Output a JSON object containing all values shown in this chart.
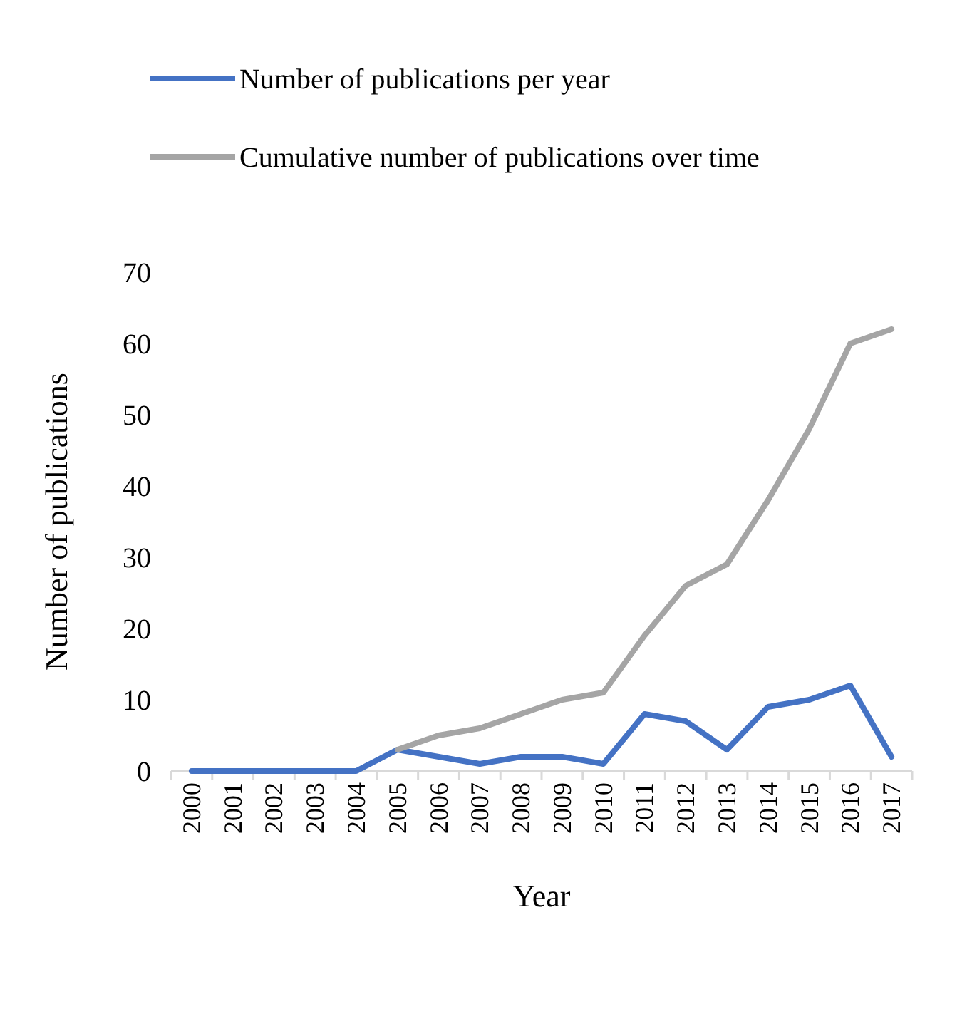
{
  "chart_data": {
    "type": "line",
    "xlabel": "Year",
    "ylabel": "Number of publications",
    "categories": [
      "2000",
      "2001",
      "2002",
      "2003",
      "2004",
      "2005",
      "2006",
      "2007",
      "2008",
      "2009",
      "2010",
      "2011",
      "2012",
      "2013",
      "2014",
      "2015",
      "2016",
      "2017"
    ],
    "series": [
      {
        "name": "Number of publications per year",
        "color": "#4472c4",
        "values": [
          0,
          0,
          0,
          0,
          0,
          3,
          2,
          1,
          2,
          2,
          1,
          8,
          7,
          3,
          9,
          10,
          12,
          2
        ]
      },
      {
        "name": "Cumulative number of publications over time",
        "color": "#a5a5a5",
        "values": [
          null,
          null,
          null,
          null,
          null,
          3,
          5,
          6,
          8,
          10,
          11,
          19,
          26,
          29,
          38,
          48,
          60,
          62
        ]
      }
    ],
    "ylim": [
      0,
      70
    ],
    "yticks": [
      0,
      10,
      20,
      30,
      40,
      50,
      60,
      70
    ],
    "grid": false,
    "legend": "top",
    "marker": "none",
    "line_style": "solid"
  }
}
